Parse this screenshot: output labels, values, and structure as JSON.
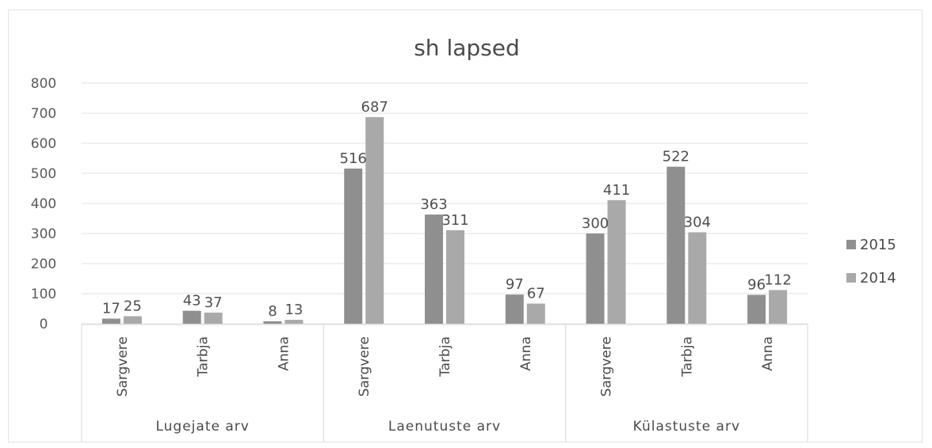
{
  "chart_data": {
    "type": "bar",
    "title": "sh lapsed",
    "ylim": [
      0,
      800
    ],
    "yticks": [
      0,
      100,
      200,
      300,
      400,
      500,
      600,
      700,
      800
    ],
    "grid": true,
    "legend_position": "right",
    "groups": [
      {
        "label": "Lugejate arv",
        "categories": [
          "Sargvere",
          "Tarbja",
          "Anna"
        ]
      },
      {
        "label": "Laenutuste arv",
        "categories": [
          "Sargvere",
          "Tarbja",
          "Anna"
        ]
      },
      {
        "label": "Külastuste arv",
        "categories": [
          "Sargvere",
          "Tarbja",
          "Anna"
        ]
      }
    ],
    "series": [
      {
        "name": "2015",
        "color": "#8f8f8f",
        "values": [
          17,
          43,
          8,
          516,
          363,
          97,
          300,
          522,
          96
        ]
      },
      {
        "name": "2014",
        "color": "#a9a9a9",
        "values": [
          25,
          37,
          13,
          687,
          311,
          67,
          411,
          304,
          112
        ]
      }
    ]
  }
}
